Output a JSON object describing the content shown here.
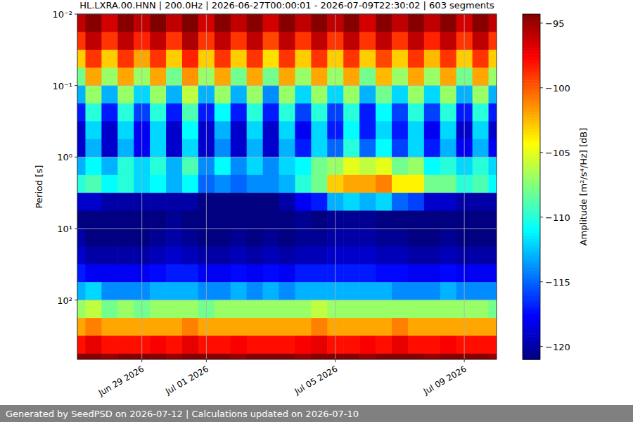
{
  "chart_data": {
    "type": "heatmap",
    "title": "HL.LXRA.00.HNN | 200.0Hz | 2026-06-27T00:00:01 - 2026-07-09T22:30:02 | 603 segments",
    "y_label": "Period [s]",
    "log": "y",
    "grid": true,
    "xlim": [
      "2026-06-27T00:00",
      "2026-07-10T00:00"
    ],
    "xticks": [
      {
        "value": "2026-06-29",
        "label": "Jun 29 2026"
      },
      {
        "value": "2026-07-01",
        "label": "Jul 01 2026"
      },
      {
        "value": "2026-07-05",
        "label": "Jul 05 2026"
      },
      {
        "value": "2026-07-09",
        "label": "Jul 09 2026"
      }
    ],
    "ylim": [
      0.01,
      676
    ],
    "yticks": [
      {
        "value": 0.01,
        "label": "10⁻²"
      },
      {
        "value": 0.1,
        "label": "10⁻¹"
      },
      {
        "value": 1,
        "label": "10⁰"
      },
      {
        "value": 10,
        "label": "10¹"
      },
      {
        "value": 100,
        "label": "10²"
      }
    ],
    "x": [
      "2026-06-27T00:00",
      "2026-06-27T06:00",
      "2026-06-27T18:00",
      "2026-06-28T06:00",
      "2026-06-28T18:00",
      "2026-06-29T06:00",
      "2026-06-29T18:00",
      "2026-06-30T06:00",
      "2026-06-30T18:00",
      "2026-07-01T06:00",
      "2026-07-01T18:00",
      "2026-07-02T06:00",
      "2026-07-02T18:00",
      "2026-07-03T06:00",
      "2026-07-03T18:00",
      "2026-07-04T06:00",
      "2026-07-04T18:00",
      "2026-07-05T06:00",
      "2026-07-05T18:00",
      "2026-07-06T06:00",
      "2026-07-06T18:00",
      "2026-07-07T06:00",
      "2026-07-07T18:00",
      "2026-07-08T06:00",
      "2026-07-08T18:00",
      "2026-07-09T06:00",
      "2026-07-09T18:00",
      "2026-07-10T00:00"
    ],
    "y": [
      0.01,
      0.0178,
      0.0316,
      0.0562,
      0.1,
      0.178,
      0.316,
      0.562,
      1,
      1.78,
      3.16,
      5.62,
      10,
      17.8,
      31.6,
      56.2,
      100,
      178,
      316,
      562,
      1000
    ],
    "z": [
      [
        -96,
        -94.5,
        -96.5,
        -94.5,
        -96,
        -94.3,
        -96,
        -94.3,
        -96.5,
        -94.5,
        -96,
        -94.5,
        -96.5,
        -94.5,
        -96,
        -94.5,
        -96,
        -94.5,
        -96.5,
        -94.5,
        -96,
        -94.5,
        -96,
        -94.5,
        -96.5,
        -94.5,
        -96
      ],
      [
        -99,
        -96,
        -99,
        -96,
        -98.5,
        -96,
        -99,
        -95.5,
        -99,
        -96,
        -99,
        -96,
        -99.5,
        -96,
        -99,
        -96,
        -99,
        -96,
        -99,
        -96,
        -99,
        -96,
        -98.5,
        -96,
        -99,
        -96,
        -99
      ],
      [
        -103,
        -99,
        -103,
        -99,
        -102,
        -99,
        -103,
        -98.5,
        -103,
        -99,
        -103,
        -99,
        -103.5,
        -99,
        -103,
        -99,
        -103,
        -99,
        -103,
        -99.5,
        -103,
        -99,
        -102.5,
        -99,
        -103,
        -99,
        -103
      ],
      [
        -108,
        -102,
        -107,
        -102,
        -107,
        -102,
        -108,
        -101.5,
        -107,
        -102,
        -108,
        -102,
        -108,
        -102,
        -107,
        -102,
        -107,
        -102,
        -108,
        -102.5,
        -107,
        -102,
        -107,
        -102,
        -108,
        -102,
        -107
      ],
      [
        -113,
        -107,
        -113,
        -107,
        -112,
        -107,
        -113,
        -106,
        -113,
        -107,
        -113,
        -107,
        -114,
        -107,
        -112,
        -107,
        -112,
        -107,
        -113,
        -108,
        -112,
        -107,
        -112,
        -107,
        -113,
        -107,
        -113
      ],
      [
        -117,
        -110,
        -117,
        -110,
        -116,
        -110,
        -117,
        -109,
        -117,
        -111,
        -117,
        -110,
        -117,
        -110,
        -116,
        -110,
        -116,
        -110,
        -117,
        -111,
        -116,
        -110,
        -116,
        -110,
        -117,
        -110,
        -117
      ],
      [
        -119,
        -112,
        -119,
        -112,
        -118,
        -112,
        -119,
        -111,
        -119,
        -113,
        -119,
        -112,
        -119,
        -112,
        -118,
        -112,
        -117,
        -111,
        -117,
        -112,
        -117,
        -112,
        -118,
        -112,
        -119,
        -112,
        -119
      ],
      [
        -119,
        -113,
        -119,
        -113,
        -118,
        -112,
        -119,
        -112,
        -119,
        -114,
        -119,
        -113,
        -119,
        -113,
        -117,
        -112,
        -115,
        -110,
        -115,
        -111,
        -116,
        -112,
        -117,
        -113,
        -118,
        -113,
        -118
      ],
      [
        -113,
        -111,
        -113,
        -110,
        -112,
        -110,
        -113,
        -109,
        -114,
        -111,
        -114,
        -112,
        -114,
        -112,
        -111,
        -108,
        -107,
        -105,
        -106,
        -105,
        -108,
        -107,
        -111,
        -110,
        -112,
        -110,
        -112
      ],
      [
        -110,
        -109,
        -111,
        -110,
        -112,
        -111,
        -113,
        -111,
        -115,
        -114,
        -115,
        -114,
        -114,
        -113,
        -110,
        -108,
        -103,
        -102,
        -102,
        -101,
        -104,
        -104,
        -108,
        -108,
        -110,
        -109,
        -111
      ],
      [
        -119,
        -119,
        -120,
        -120,
        -120,
        -120,
        -120,
        -120,
        -121,
        -121,
        -121,
        -121,
        -121,
        -120,
        -118,
        -117,
        -113,
        -112,
        -113,
        -112,
        -115,
        -116,
        -119,
        -119,
        -120,
        -120,
        -120
      ],
      [
        -121,
        -121,
        -121,
        -121,
        -121,
        -121,
        -120.5,
        -121,
        -121,
        -121,
        -121,
        -121,
        -121,
        -121,
        -120.5,
        -121,
        -120.5,
        -120.5,
        -120.5,
        -121,
        -121,
        -121,
        -121,
        -121,
        -121,
        -121,
        -121
      ],
      [
        -120,
        -121,
        -121,
        -121,
        -121,
        -120.5,
        -120,
        -120.5,
        -121,
        -121,
        -120.5,
        -121,
        -120.5,
        -121,
        -120.5,
        -120.5,
        -120,
        -120,
        -120,
        -120.5,
        -120.5,
        -121,
        -121,
        -120.5,
        -121,
        -121,
        -121
      ],
      [
        -119,
        -120,
        -120,
        -120,
        -120,
        -119.5,
        -119,
        -119.5,
        -120,
        -120,
        -119.5,
        -120,
        -119.5,
        -120,
        -119.5,
        -119.5,
        -119,
        -119,
        -119,
        -119.5,
        -119.5,
        -120,
        -120,
        -119.5,
        -120,
        -120,
        -120
      ],
      [
        -117,
        -118,
        -118,
        -118,
        -118,
        -117.5,
        -117,
        -117,
        -118,
        -118,
        -117.5,
        -118,
        -117.5,
        -118,
        -117,
        -117,
        -117,
        -117,
        -117,
        -117.5,
        -117.5,
        -118,
        -118,
        -117.5,
        -118,
        -118,
        -118
      ],
      [
        -113,
        -112,
        -114,
        -114,
        -114,
        -113,
        -113,
        -113,
        -114,
        -114,
        -113,
        -114,
        -113,
        -114,
        -113,
        -113,
        -113,
        -113,
        -113,
        -113,
        -114,
        -114,
        -114,
        -113,
        -114,
        -114,
        -114
      ],
      [
        -107,
        -106,
        -108,
        -107,
        -108,
        -107,
        -107,
        -107,
        -108,
        -107,
        -107,
        -107,
        -107,
        -107,
        -107,
        -106,
        -107,
        -107,
        -107,
        -107,
        -107,
        -107,
        -107,
        -107,
        -107,
        -107,
        -108
      ],
      [
        -102,
        -101,
        -102,
        -102,
        -102,
        -102,
        -102,
        -101,
        -102,
        -102,
        -102,
        -102,
        -102,
        -102,
        -102,
        -101,
        -102,
        -102,
        -102,
        -102,
        -101,
        -102,
        -102,
        -102,
        -102,
        -102,
        -102
      ],
      [
        -98,
        -97,
        -98,
        -98,
        -98,
        -97.5,
        -98,
        -97,
        -98,
        -98,
        -97.5,
        -98,
        -98,
        -98,
        -97.5,
        -97,
        -98,
        -98,
        -97.5,
        -98,
        -97,
        -98,
        -98,
        -97.5,
        -98,
        -98,
        -98
      ],
      [
        -94.5,
        -94.5,
        -95,
        -94.5,
        -94.5,
        -94.5,
        -95,
        -94.5,
        -94.5,
        -94.5,
        -95,
        -94.5,
        -94.5,
        -94.5,
        -95,
        -94.5,
        -94.5,
        -94.5,
        -95,
        -94.5,
        -94.5,
        -94.5,
        -95,
        -94.5,
        -94.5,
        -94.5,
        -95
      ]
    ],
    "colorbar": {
      "label": "Amplitude [m²/s⁴/Hz] [dB]",
      "range": [
        -121,
        -94.3
      ],
      "ticks": [
        {
          "value": -95,
          "label": "−95"
        },
        {
          "value": -100,
          "label": "−100"
        },
        {
          "value": -105,
          "label": "−105"
        },
        {
          "value": -110,
          "label": "−110"
        },
        {
          "value": -115,
          "label": "−115"
        },
        {
          "value": -120,
          "label": "−120"
        }
      ]
    }
  },
  "footer": "Generated by SeedPSD on 2026-07-12 | Calculations updated on 2026-07-10"
}
